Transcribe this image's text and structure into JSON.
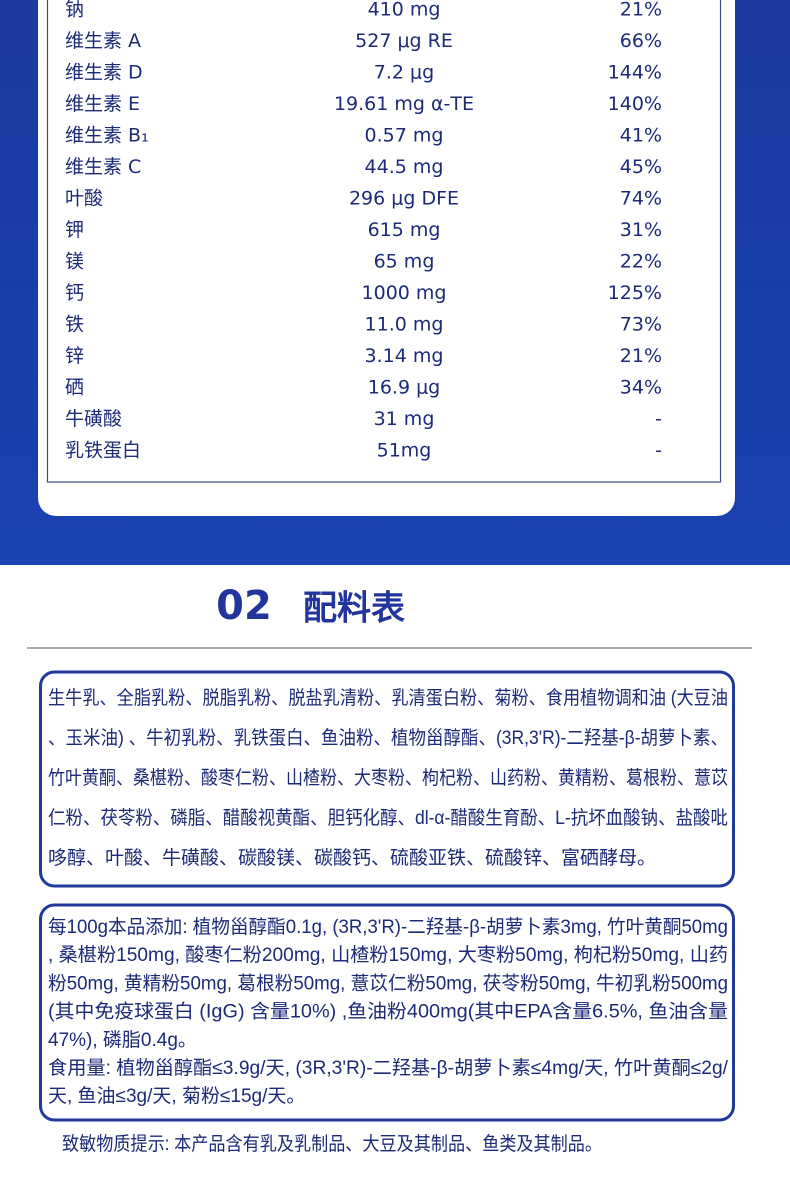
{
  "nutrition": {
    "rows": [
      [
        "钠",
        "410 mg",
        "21%"
      ],
      [
        "维生素 A",
        "527 μg RE",
        "66%"
      ],
      [
        "维生素 D",
        "7.2 μg",
        "144%"
      ],
      [
        "维生素 E",
        "19.61 mg α-TE",
        "140%"
      ],
      [
        "维生素 B₁",
        "0.57 mg",
        "41%"
      ],
      [
        "维生素 C",
        "44.5 mg",
        "45%"
      ],
      [
        "叶酸",
        "296 μg DFE",
        "74%"
      ],
      [
        "钾",
        "615 mg",
        "31%"
      ],
      [
        "镁",
        "65 mg",
        "22%"
      ],
      [
        "钙",
        "1000 mg",
        "125%"
      ],
      [
        "铁",
        "11.0 mg",
        "73%"
      ],
      [
        "锌",
        "3.14 mg",
        "21%"
      ],
      [
        "硒",
        "16.9 μg",
        "34%"
      ],
      [
        "牛磺酸",
        "31 mg",
        "-"
      ],
      [
        "乳铁蛋白",
        "51mg",
        "-"
      ]
    ]
  },
  "ingredients": {
    "number": "02",
    "title": "配料表",
    "lines": [
      "生牛乳、全脂乳粉、脱脂乳粉、脱盐乳清粉、乳清蛋白粉、菊粉、食用植物调和油 (大豆油",
      "、玉米油) 、牛初乳粉、乳铁蛋白、鱼油粉、植物甾醇酯、(3R,3'R)-二羟基-β-胡萝卜素、",
      "竹叶黄酮、桑椹粉、酸枣仁粉、山楂粉、大枣粉、枸杞粉、山药粉、黄精粉、葛根粉、薏苡",
      "仁粉、茯苓粉、磷脂、醋酸视黄酯、胆钙化醇、dl-α-醋酸生育酚、L-抗坏血酸钠、盐酸吡",
      "哆醇、叶酸、牛磺酸、碳酸镁、碳酸钙、硫酸亚铁、硫酸锌、富硒酵母。"
    ]
  },
  "additives": {
    "lines": [
      "每100g本品添加: 植物甾醇酯0.1g, (3R,3'R)-二羟基-β-胡萝卜素3mg, 竹叶黄酮50mg",
      ", 桑椹粉150mg, 酸枣仁粉200mg, 山楂粉150mg, 大枣粉50mg, 枸杞粉50mg, 山药",
      "粉50mg, 黄精粉50mg, 葛根粉50mg, 薏苡仁粉50mg, 茯苓粉50mg, 牛初乳粉500mg",
      " (其中免疫球蛋白 (IgG) 含量10%) ,鱼油粉400mg(其中EPA含量6.5%, 鱼油含量",
      "47%), 磷脂0.4g。",
      "食用量: 植物甾醇酯≤3.9g/天, (3R,3'R)-二羟基-β-胡萝卜素≤4mg/天, 竹叶黄酮≤2g/",
      "天, 鱼油≤3g/天, 菊粉≤15g/天。"
    ]
  },
  "allergen": "致敏物质提示: 本产品含有乳及乳制品、大豆及其制品、鱼类及其制品。"
}
